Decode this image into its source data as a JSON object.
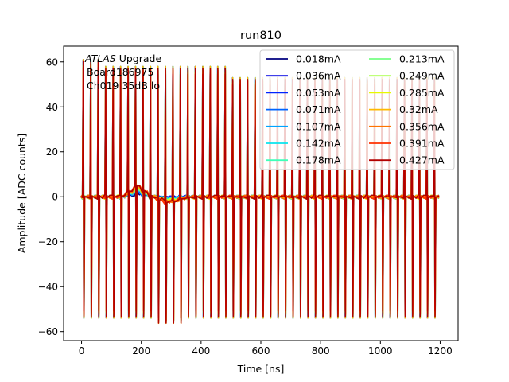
{
  "chart_data": {
    "type": "line",
    "title": "run810",
    "xlabel": "Time [ns]",
    "ylabel": "Amplitude [ADC counts]",
    "xlim": [
      -60,
      1260
    ],
    "ylim": [
      -64,
      67
    ],
    "xticks": [
      0,
      200,
      400,
      600,
      800,
      1000,
      1200
    ],
    "yticks": [
      -60,
      -40,
      -20,
      0,
      20,
      40,
      60
    ],
    "annotations": [
      "ATLAS Upgrade",
      "Board186975",
      "Ch019 35dB lo"
    ],
    "legend_position": "top-right",
    "pulse_model": {
      "period_ns": 25,
      "first_pulse_ns": 5,
      "last_pulse_ns": 1180,
      "positive_peak": 58,
      "positive_peak_late": 53,
      "negative_peak": -54,
      "bump_center_ns": 180,
      "bump_amplitude": 5
    },
    "series": [
      {
        "name": "0.018mA",
        "color": "#00007f"
      },
      {
        "name": "0.036mA",
        "color": "#0000e0"
      },
      {
        "name": "0.053mA",
        "color": "#0024ff"
      },
      {
        "name": "0.071mA",
        "color": "#0064ff"
      },
      {
        "name": "0.107mA",
        "color": "#00a4ff"
      },
      {
        "name": "0.142mA",
        "color": "#08e4ee"
      },
      {
        "name": "0.178mA",
        "color": "#3effb8"
      },
      {
        "name": "0.213mA",
        "color": "#74ff82"
      },
      {
        "name": "0.249mA",
        "color": "#aaff4d"
      },
      {
        "name": "0.285mA",
        "color": "#e7f900"
      },
      {
        "name": "0.32mA",
        "color": "#ffb900"
      },
      {
        "name": "0.356mA",
        "color": "#ff7300"
      },
      {
        "name": "0.391mA",
        "color": "#ff3000"
      },
      {
        "name": "0.427mA",
        "color": "#b20000"
      }
    ]
  }
}
